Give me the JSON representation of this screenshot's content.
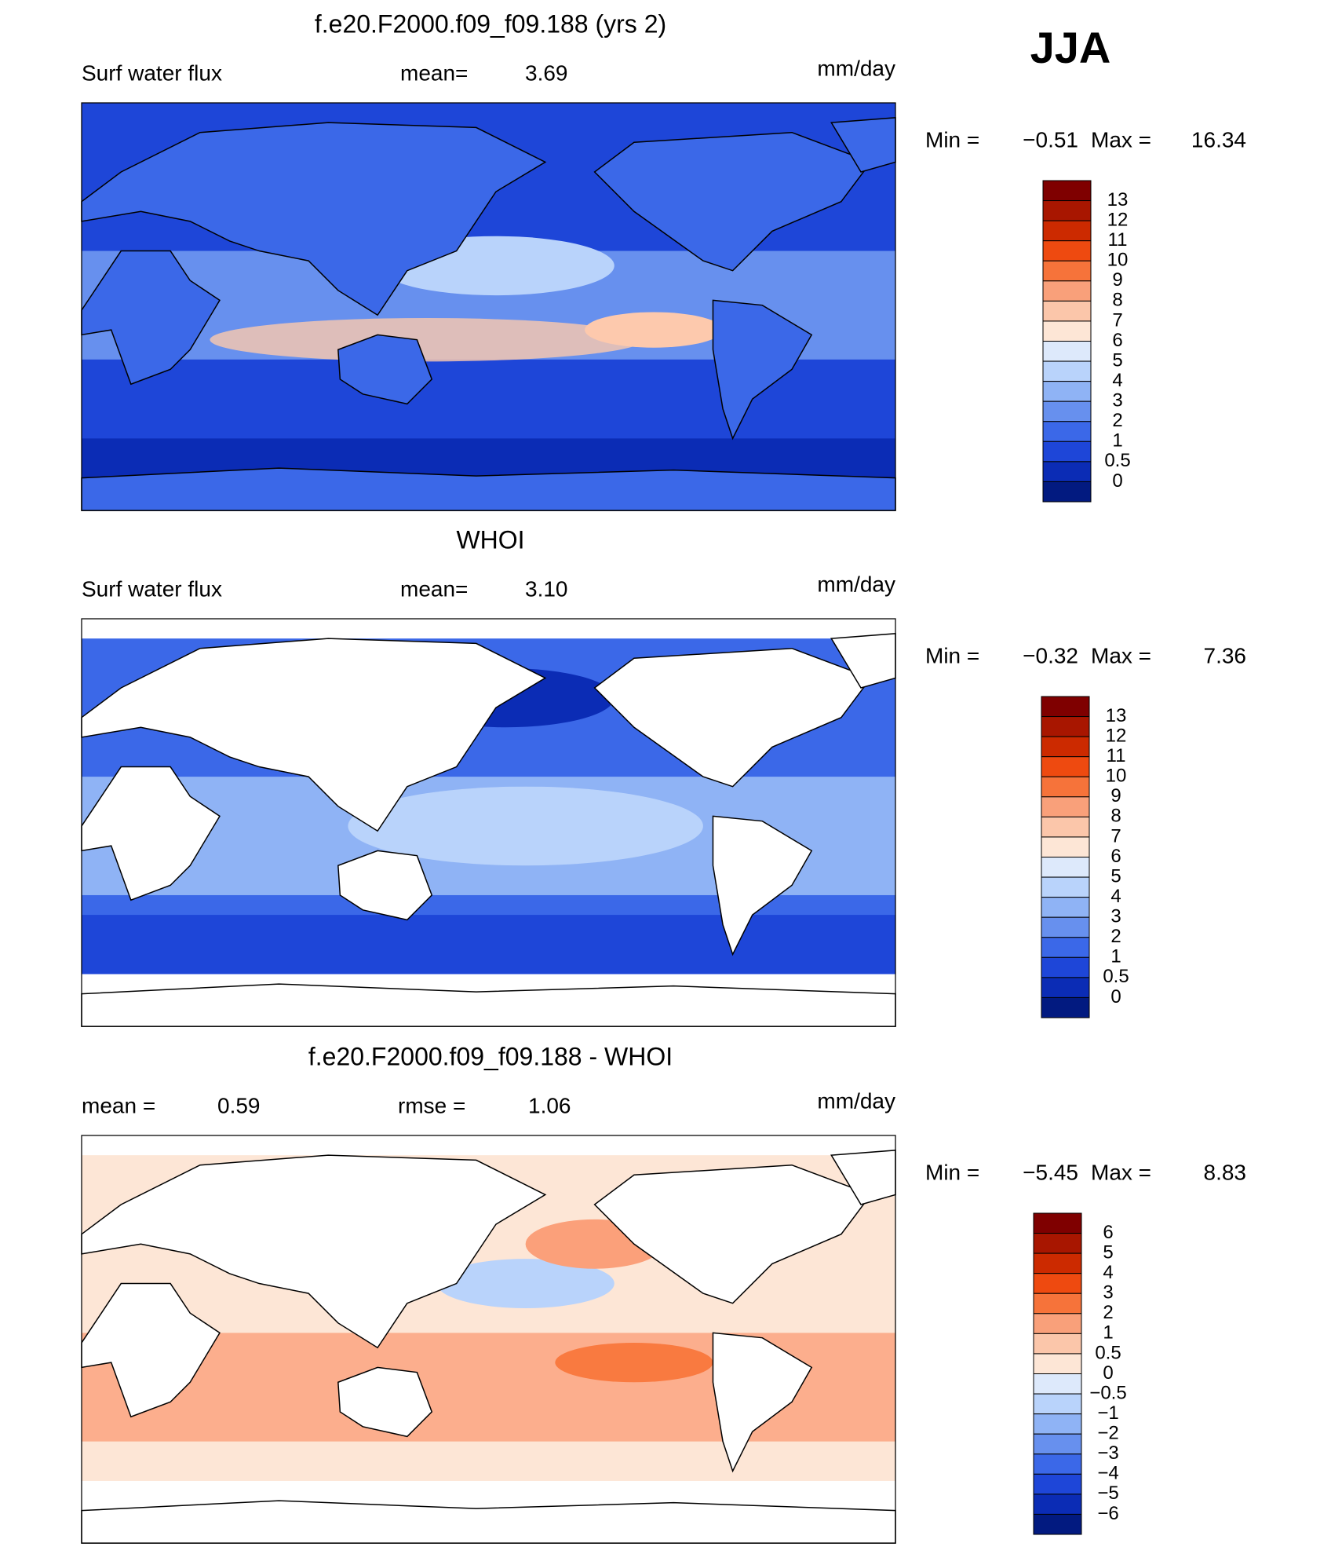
{
  "season": "JJA",
  "panels": [
    {
      "title": "f.e20.F2000.f09_f09.188 (yrs 2)",
      "stats": [
        {
          "label": "Surf water flux"
        },
        {
          "label": "mean=",
          "value": "3.69"
        }
      ],
      "units": "mm/day",
      "min_label": "Min =",
      "min": "−0.51",
      "max_label": "Max =",
      "max": "16.34",
      "levels": [
        "13",
        "12",
        "11",
        "10",
        "9",
        "8",
        "7",
        "6",
        "5",
        "4",
        "3",
        "2",
        "1",
        "0.5",
        "0"
      ]
    },
    {
      "title": "WHOI",
      "stats": [
        {
          "label": "Surf water flux"
        },
        {
          "label": "mean=",
          "value": "3.10"
        }
      ],
      "units": "mm/day",
      "min_label": "Min =",
      "min": "−0.32",
      "max_label": "Max =",
      "max": "7.36",
      "levels": [
        "13",
        "12",
        "11",
        "10",
        "9",
        "8",
        "7",
        "6",
        "5",
        "4",
        "3",
        "2",
        "1",
        "0.5",
        "0"
      ]
    },
    {
      "title": "f.e20.F2000.f09_f09.188 - WHOI",
      "stats": [
        {
          "label": "mean =",
          "value": "0.59"
        },
        {
          "label": "rmse =",
          "value": "1.06"
        }
      ],
      "units": "mm/day",
      "min_label": "Min =",
      "min": "−5.45",
      "max_label": "Max =",
      "max": "8.83",
      "levels": [
        "6",
        "5",
        "4",
        "3",
        "2",
        "1",
        "0.5",
        "0",
        "−0.5",
        "−1",
        "−2",
        "−3",
        "−4",
        "−5",
        "−6"
      ]
    }
  ]
}
